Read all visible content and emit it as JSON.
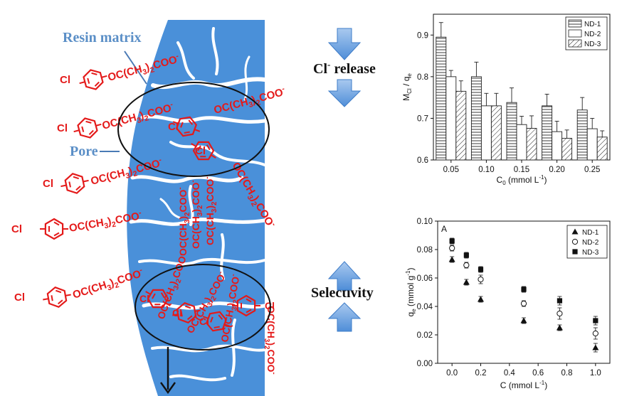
{
  "labels": {
    "resin_matrix": "Resin matrix",
    "pore": "Pore",
    "cl_release": "Cl",
    "cl_release_sup": "-",
    "cl_release_tail": " release",
    "selectivity": "Selectivity"
  },
  "molecule": {
    "cl": "Cl",
    "group": "OC(CH",
    "sub3": "3",
    "mid": ")",
    "sub2": "2",
    "coo": "COO",
    "minus": "-"
  },
  "colors": {
    "resin": "#4a90d9",
    "molecule": "#e41a1a",
    "arrow": "#6fa3e0"
  },
  "chart_data": [
    {
      "type": "bar",
      "categories": [
        "0.05",
        "0.10",
        "0.15",
        "0.20",
        "0.25"
      ],
      "series": [
        {
          "name": "ND-1",
          "values": [
            0.895,
            0.8,
            0.738,
            0.73,
            0.72
          ],
          "errors": [
            0.035,
            0.035,
            0.035,
            0.028,
            0.03
          ]
        },
        {
          "name": "ND-2",
          "values": [
            0.8,
            0.73,
            0.685,
            0.668,
            0.675
          ],
          "errors": [
            0.015,
            0.03,
            0.02,
            0.025,
            0.025
          ]
        },
        {
          "name": "ND-3",
          "values": [
            0.765,
            0.73,
            0.676,
            0.652,
            0.655
          ],
          "errors": [
            0.025,
            0.03,
            0.03,
            0.02,
            0.015
          ]
        }
      ],
      "xlabel": "C",
      "xlabel_sub": "0",
      "xlabel_unit": " (mmol L",
      "xlabel_sup": "-1",
      "xlabel_end": ")",
      "ylabel": "M",
      "ylabel_sub": "Cl",
      "ylabel_mid": " / q",
      "ylabel_sub2": "e",
      "ylim": [
        0.6,
        0.95
      ],
      "yticks": [
        "0.6",
        "0.7",
        "0.8",
        "0.9"
      ],
      "legend": "top-right"
    },
    {
      "type": "scatter",
      "panel_label": "A",
      "series": [
        {
          "name": "ND-1",
          "marker": "triangle",
          "x": [
            0.0,
            0.1,
            0.2,
            0.5,
            0.75,
            1.0
          ],
          "y": [
            0.073,
            0.057,
            0.045,
            0.03,
            0.025,
            0.011
          ],
          "errors": [
            0.002,
            0.002,
            0.002,
            0.002,
            0.002,
            0.003
          ]
        },
        {
          "name": "ND-2",
          "marker": "circle-open",
          "x": [
            0.0,
            0.1,
            0.2,
            0.5,
            0.75,
            1.0
          ],
          "y": [
            0.081,
            0.069,
            0.059,
            0.042,
            0.035,
            0.021
          ],
          "errors": [
            0.002,
            0.002,
            0.003,
            0.002,
            0.004,
            0.004
          ]
        },
        {
          "name": "ND-3",
          "marker": "square",
          "x": [
            0.0,
            0.1,
            0.2,
            0.5,
            0.75,
            1.0
          ],
          "y": [
            0.086,
            0.076,
            0.066,
            0.052,
            0.044,
            0.03
          ],
          "errors": [
            0.002,
            0.002,
            0.002,
            0.002,
            0.003,
            0.003
          ]
        }
      ],
      "xlabel": "C (mmol L",
      "xlabel_sup": "-1",
      "xlabel_end": ")",
      "ylabel": "q",
      "ylabel_sub": "e",
      "ylabel_unit": " (mmol g",
      "ylabel_sup": "-1",
      "ylabel_end": ")",
      "xlim": [
        -0.1,
        1.1
      ],
      "ylim": [
        0.0,
        0.1
      ],
      "xticks": [
        "0.0",
        "0.2",
        "0.4",
        "0.6",
        "0.8",
        "1.0"
      ],
      "yticks": [
        "0.00",
        "0.02",
        "0.04",
        "0.06",
        "0.08",
        "0.10"
      ],
      "legend": "top-right"
    }
  ]
}
